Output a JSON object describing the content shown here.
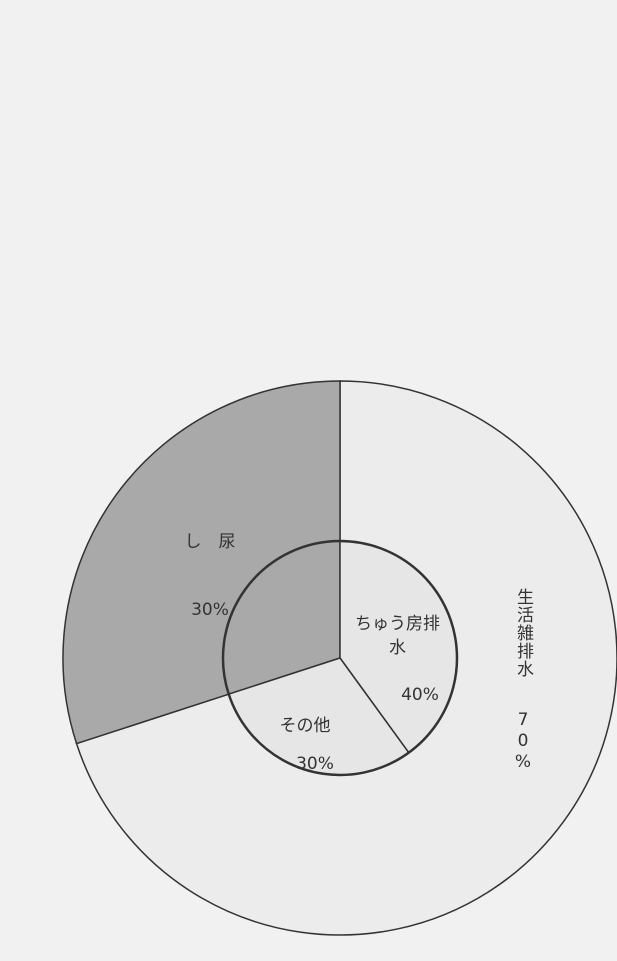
{
  "chart_data": {
    "type": "donut",
    "outer": {
      "categories": [
        "生活雑排水",
        "し　尿"
      ],
      "values": [
        70,
        30
      ],
      "value_labels": [
        "70%",
        "30%"
      ],
      "colors": [
        "#ececec",
        "#a9a9a9"
      ]
    },
    "inner": {
      "categories": [
        "ちゅう房排水",
        "その他"
      ],
      "values": [
        40,
        30
      ],
      "value_labels": [
        "40%",
        "30%"
      ],
      "colors": [
        "#e6e6e6",
        "#e6e6e6"
      ]
    }
  }
}
